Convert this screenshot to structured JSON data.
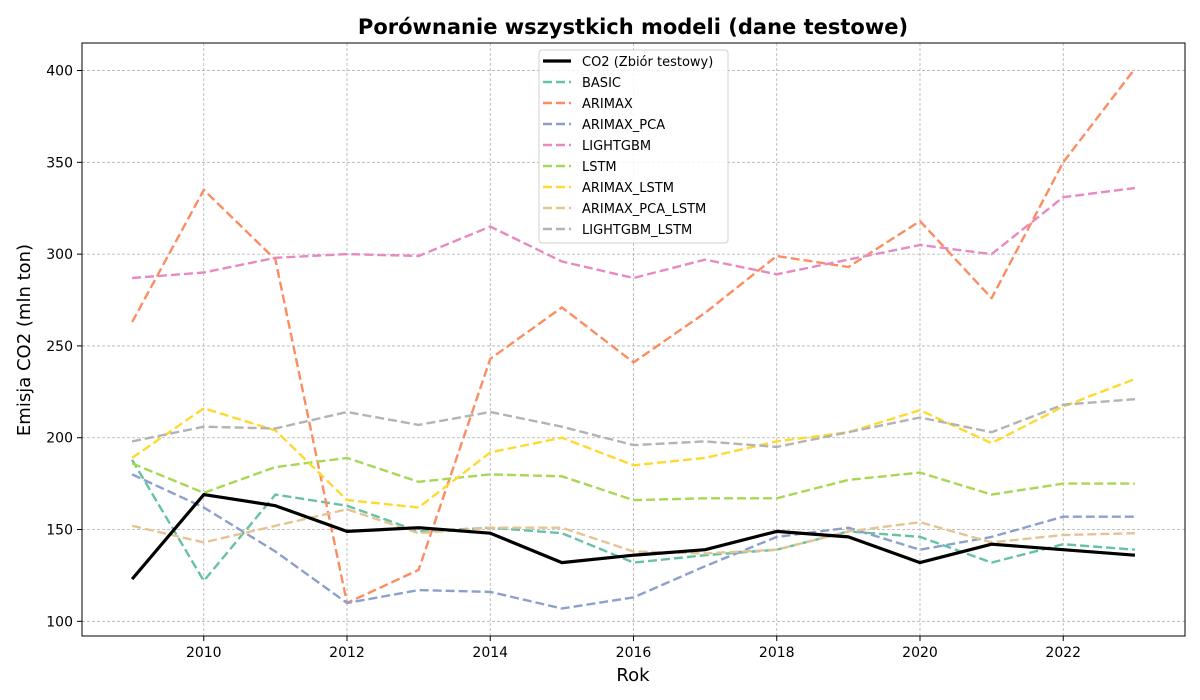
{
  "chart_data": {
    "type": "line",
    "title": "Porównanie wszystkich modeli (dane testowe)",
    "xlabel": "Rok",
    "ylabel": "Emisja CO2 (mln ton)",
    "xlim": [
      2008.3,
      2023.7
    ],
    "ylim": [
      92,
      415
    ],
    "xticks": [
      2010,
      2012,
      2014,
      2016,
      2018,
      2020,
      2022
    ],
    "yticks": [
      100,
      150,
      200,
      250,
      300,
      350,
      400
    ],
    "grid": true,
    "legend_position": "top-center",
    "x": [
      2009,
      2010,
      2011,
      2012,
      2013,
      2014,
      2015,
      2016,
      2017,
      2018,
      2019,
      2020,
      2021,
      2022,
      2023
    ],
    "series": [
      {
        "name": "CO2 (Zbiór testowy)",
        "color": "#000000",
        "style": "solid",
        "values": [
          123,
          169,
          163,
          149,
          151,
          148,
          132,
          136,
          139,
          149,
          146,
          132,
          142,
          139,
          136
        ]
      },
      {
        "name": "BASIC",
        "color": "#66c2a5",
        "style": "dashed",
        "values": [
          188,
          122,
          169,
          163,
          149,
          151,
          148,
          132,
          136,
          139,
          149,
          146,
          132,
          142,
          139
        ]
      },
      {
        "name": "ARIMAX",
        "color": "#fc8d62",
        "style": "dashed",
        "values": [
          263,
          335,
          297,
          110,
          128,
          243,
          271,
          241,
          268,
          299,
          293,
          318,
          276,
          350,
          401
        ]
      },
      {
        "name": "ARIMAX_PCA",
        "color": "#8da0cb",
        "style": "dashed",
        "values": [
          180,
          162,
          138,
          110,
          117,
          116,
          107,
          113,
          130,
          146,
          151,
          139,
          146,
          157,
          157
        ]
      },
      {
        "name": "LIGHTGBM",
        "color": "#e78ac3",
        "style": "dashed",
        "values": [
          287,
          290,
          298,
          300,
          299,
          315,
          296,
          287,
          297,
          289,
          297,
          305,
          300,
          331,
          336
        ]
      },
      {
        "name": "LSTM",
        "color": "#a6d854",
        "style": "dashed",
        "values": [
          186,
          170,
          184,
          189,
          176,
          180,
          179,
          166,
          167,
          167,
          177,
          181,
          169,
          175,
          175
        ]
      },
      {
        "name": "ARIMAX_LSTM",
        "color": "#ffd92f",
        "style": "dashed",
        "values": [
          189,
          216,
          204,
          166,
          162,
          192,
          200,
          185,
          189,
          198,
          203,
          215,
          197,
          217,
          232
        ]
      },
      {
        "name": "ARIMAX_PCA_LSTM",
        "color": "#e5c494",
        "style": "dashed",
        "values": [
          152,
          143,
          152,
          161,
          148,
          151,
          151,
          138,
          137,
          139,
          149,
          154,
          143,
          147,
          148
        ]
      },
      {
        "name": "LIGHTGBM_LSTM",
        "color": "#b3b3b3",
        "style": "dashed",
        "values": [
          198,
          206,
          205,
          214,
          207,
          214,
          206,
          196,
          198,
          195,
          203,
          211,
          203,
          218,
          221
        ]
      }
    ]
  }
}
